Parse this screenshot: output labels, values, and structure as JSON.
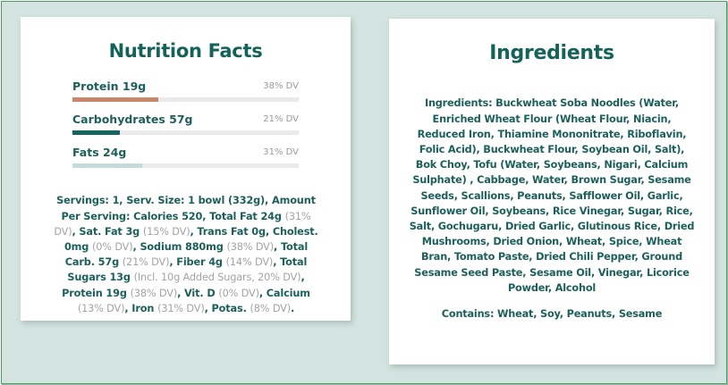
{
  "nutrition": {
    "title": "Nutrition Facts",
    "macros": [
      {
        "label": "Protein 19g",
        "dv": "38% DV",
        "percent": 38,
        "color": "#c9866a"
      },
      {
        "label": "Carbohydrates 57g",
        "dv": "21% DV",
        "percent": 21,
        "color": "#146560"
      },
      {
        "label": "Fats 24g",
        "dv": "31% DV",
        "percent": 31,
        "color": "#c6dcd8"
      }
    ],
    "serving_segments": [
      {
        "text": "Servings: 1, Serv. Size: 1 bowl (332g), Amount Per Serving: Calories 520, Total Fat 24g ",
        "dv": false
      },
      {
        "text": "(31% DV)",
        "dv": true
      },
      {
        "text": ", Sat. Fat 3g ",
        "dv": false
      },
      {
        "text": "(15% DV)",
        "dv": true
      },
      {
        "text": ", Trans Fat 0g, Cholest. 0mg ",
        "dv": false
      },
      {
        "text": "(0% DV)",
        "dv": true
      },
      {
        "text": ", Sodium 880mg ",
        "dv": false
      },
      {
        "text": "(38% DV)",
        "dv": true
      },
      {
        "text": ", Total Carb. 57g ",
        "dv": false
      },
      {
        "text": "(21% DV)",
        "dv": true
      },
      {
        "text": ", Fiber 4g ",
        "dv": false
      },
      {
        "text": "(14% DV)",
        "dv": true
      },
      {
        "text": ", Total Sugars 13g ",
        "dv": false
      },
      {
        "text": "(Incl. 10g Added Sugars, 20% DV)",
        "dv": true
      },
      {
        "text": ", Protein 19g ",
        "dv": false
      },
      {
        "text": "(38% DV)",
        "dv": true
      },
      {
        "text": ", Vit. D ",
        "dv": false
      },
      {
        "text": "(0% DV)",
        "dv": true
      },
      {
        "text": ", Calcium ",
        "dv": false
      },
      {
        "text": "(13% DV)",
        "dv": true
      },
      {
        "text": ", Iron ",
        "dv": false
      },
      {
        "text": "(31% DV)",
        "dv": true
      },
      {
        "text": ", Potas. ",
        "dv": false
      },
      {
        "text": "(8% DV)",
        "dv": true
      },
      {
        "text": ".",
        "dv": false
      }
    ]
  },
  "ingredients": {
    "title": "Ingredients",
    "text": "Ingredients: Buckwheat Soba Noodles (Water, Enriched Wheat Flour (Wheat Flour, Niacin, Reduced Iron, Thiamine Mononitrate, Riboflavin, Folic Acid), Buckwheat Flour, Soybean Oil, Salt), Bok Choy, Tofu (Water, Soybeans, Nigari, Calcium Sulphate) , Cabbage, Water, Brown Sugar, Sesame Seeds, Scallions, Peanuts, Safflower Oil, Garlic, Sunflower Oil, Soybeans, Rice Vinegar, Sugar, Rice, Salt, Gochugaru, Dried Garlic, Glutinous Rice, Dried Mushrooms, Dried Onion, Wheat, Spice, Wheat Bran, Tomato Paste, Dried Chili Pepper, Ground Sesame Seed Paste, Sesame Oil, Vinegar, Licorice Powder, Alcohol",
    "contains": "Contains:  Wheat, Soy, Peanuts, Sesame"
  },
  "colors": {
    "heading": "#14625a",
    "body_text": "#1d5f5b",
    "dv_text": "#a3a3a3",
    "background": "#d3e4e0",
    "frame_border": "#4f9a62"
  }
}
